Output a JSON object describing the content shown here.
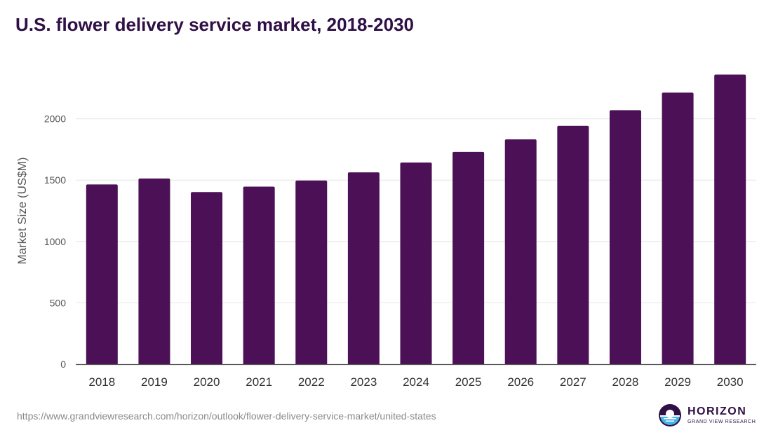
{
  "colors": {
    "bar": "#4b1055",
    "title": "#2f0f45",
    "grid": "#e6e6e6",
    "axis_text": "#555555",
    "logo_accent": "#44b4e6"
  },
  "footer": {
    "url": "https://www.grandviewresearch.com/horizon/outlook/flower-delivery-service-market/united-states",
    "logo_name": "HORIZON",
    "logo_sub": "GRAND VIEW RESEARCH"
  },
  "chart_data": {
    "type": "bar",
    "title": "U.S. flower delivery service market, 2018-2030",
    "xlabel": "",
    "ylabel": "Market Size (US$M)",
    "categories": [
      "2018",
      "2019",
      "2020",
      "2021",
      "2022",
      "2023",
      "2024",
      "2025",
      "2026",
      "2027",
      "2028",
      "2029",
      "2030"
    ],
    "values": [
      1465,
      1513,
      1403,
      1447,
      1497,
      1563,
      1643,
      1730,
      1832,
      1942,
      2070,
      2213,
      2360
    ],
    "ylim": [
      0,
      2500
    ],
    "yticks": [
      0,
      500,
      1000,
      1500,
      2000
    ],
    "grid": true
  }
}
